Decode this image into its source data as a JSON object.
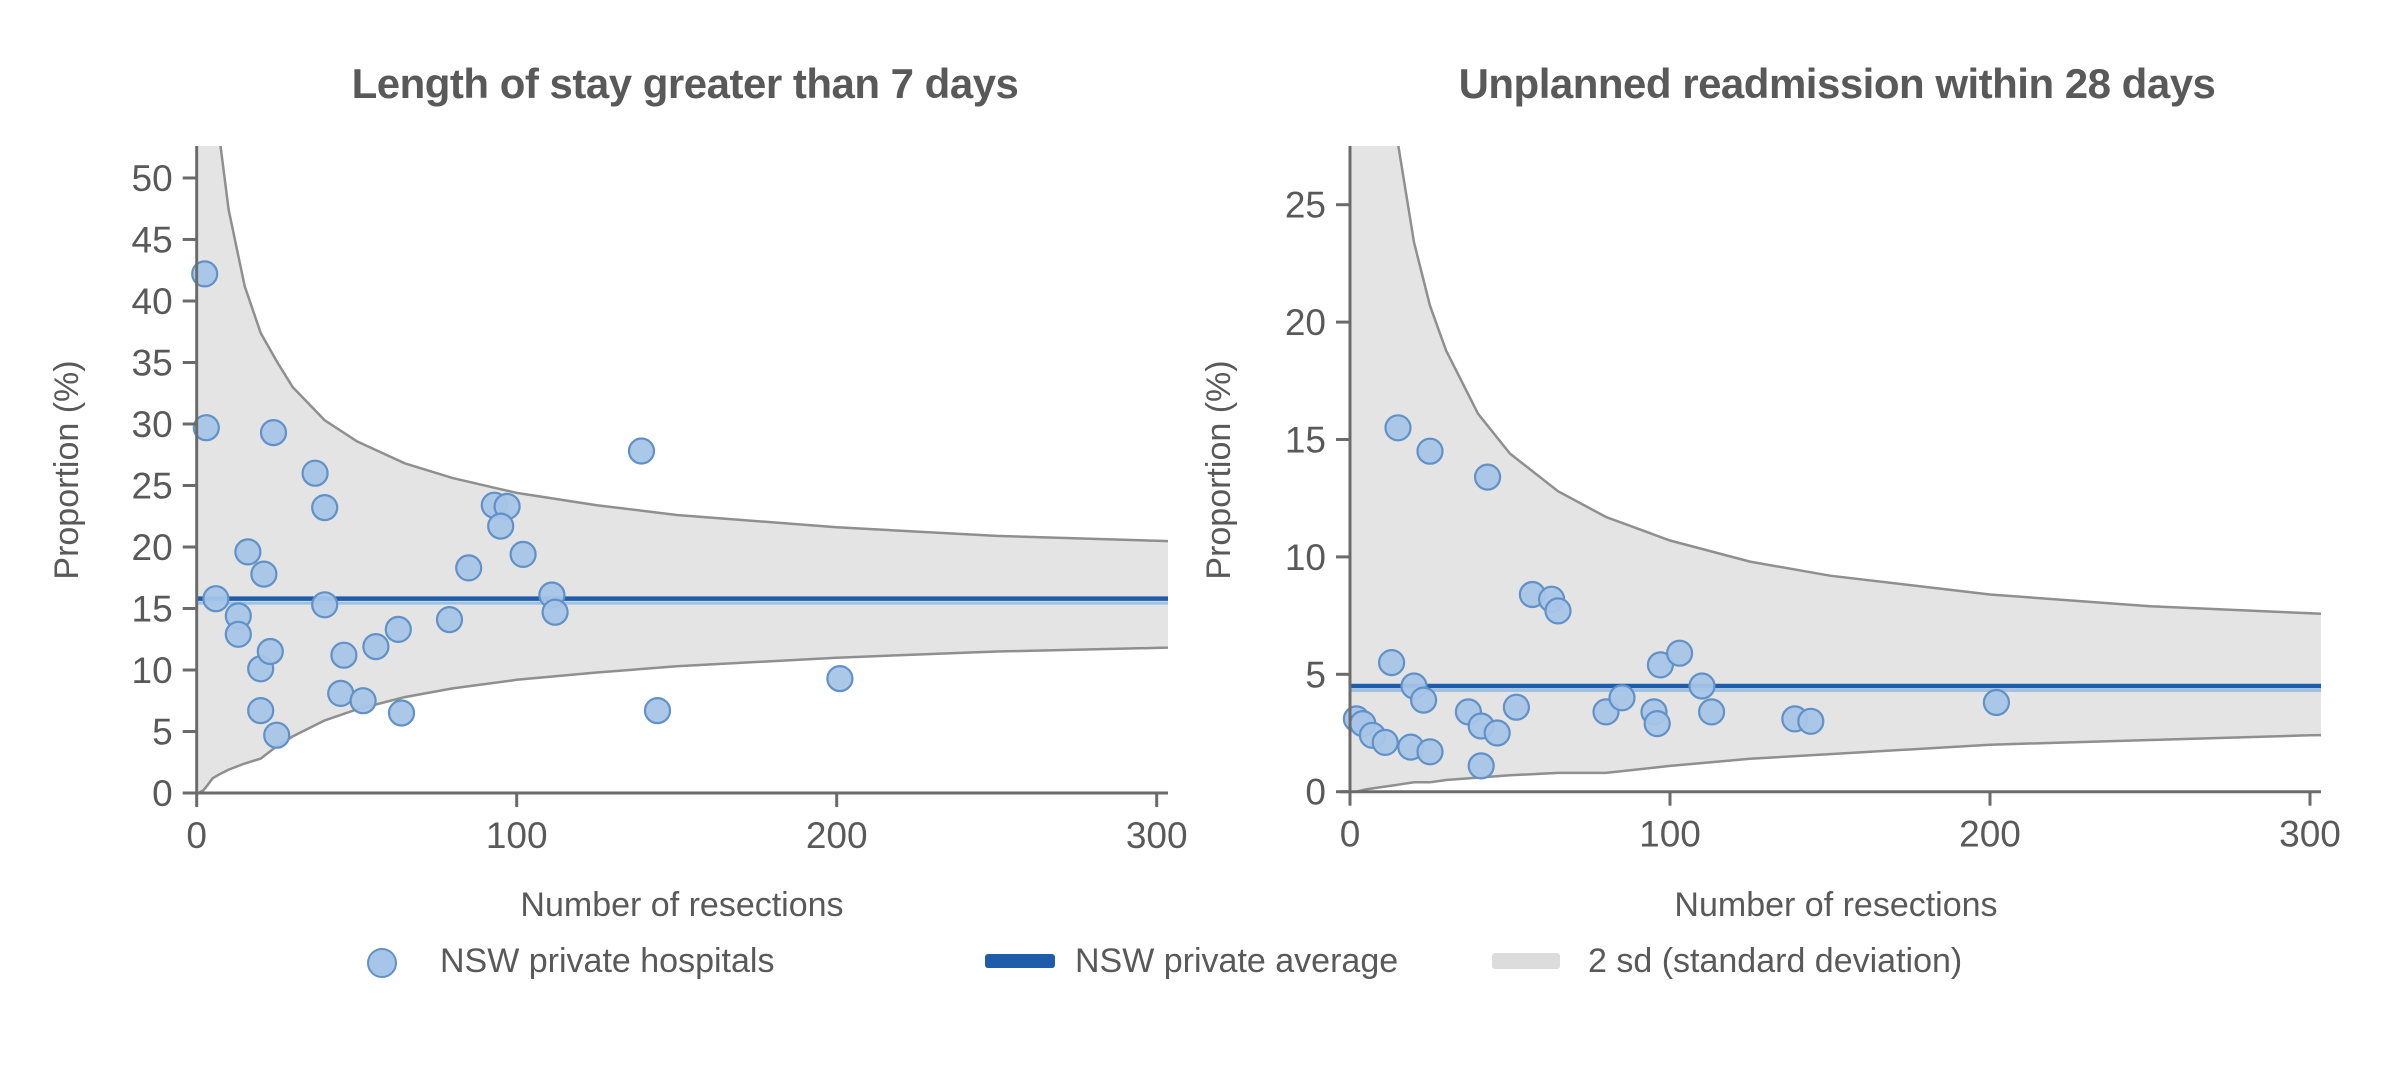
{
  "colors": {
    "point_fill": "#a6c5e8",
    "point_stroke": "#6191c6",
    "mean_line": "#1f5ca9",
    "mean_line_light": "#9cc2e5",
    "band_fill": "#e4e4e4",
    "band_stroke": "#8f8f8f",
    "band_legend_swatch": "#dcdcdc",
    "axis": "#6b6b6b",
    "text": "#595959"
  },
  "legend": {
    "items": [
      {
        "label": "NSW private hospitals",
        "type": "dot"
      },
      {
        "label": "NSW private average",
        "type": "line"
      },
      {
        "label": "2 sd (standard deviation)",
        "type": "band"
      }
    ]
  },
  "chart_data": [
    {
      "type": "scatter",
      "title": "Length of stay greater than 7 days",
      "xlabel": "Number of resections",
      "ylabel": "Proportion (%)",
      "x_ticks": [
        0,
        100,
        200,
        300
      ],
      "y_ticks": [
        0,
        5,
        10,
        15,
        20,
        25,
        30,
        35,
        40,
        45,
        50
      ],
      "xlim": [
        0,
        303.5
      ],
      "ylim": [
        0,
        52.6
      ],
      "legend_position": "bottom",
      "grid": false,
      "mean": 15.8,
      "points": [
        [
          2.5,
          42.2
        ],
        [
          3,
          29.7
        ],
        [
          6,
          15.8
        ],
        [
          13,
          14.4
        ],
        [
          13,
          12.9
        ],
        [
          16,
          19.6
        ],
        [
          21,
          17.8
        ],
        [
          20,
          10.1
        ],
        [
          20,
          6.7
        ],
        [
          23,
          11.5
        ],
        [
          24,
          29.3
        ],
        [
          25,
          4.7
        ],
        [
          37,
          26.0
        ],
        [
          40,
          23.2
        ],
        [
          40,
          15.3
        ],
        [
          45,
          8.1
        ],
        [
          46,
          11.2
        ],
        [
          52,
          7.5
        ],
        [
          56,
          11.9
        ],
        [
          63,
          13.3
        ],
        [
          64,
          6.5
        ],
        [
          79,
          14.1
        ],
        [
          85,
          18.3
        ],
        [
          93,
          23.4
        ],
        [
          97,
          23.3
        ],
        [
          95,
          21.7
        ],
        [
          102,
          19.4
        ],
        [
          111,
          16.1
        ],
        [
          112,
          14.7
        ],
        [
          139,
          27.8
        ],
        [
          144,
          6.7
        ],
        [
          201,
          9.3
        ]
      ],
      "funnel_2sd": {
        "n": [
          0.5,
          2,
          3,
          5,
          7,
          10,
          15,
          20,
          25,
          30,
          40,
          50,
          65,
          80,
          100,
          125,
          150,
          200,
          250,
          300,
          350
        ],
        "upper": [
          100,
          76.1,
          69.1,
          59.7,
          53.5,
          47.4,
          41.2,
          37.4,
          35.1,
          33.0,
          30.3,
          28.6,
          26.8,
          25.6,
          24.4,
          23.4,
          22.6,
          21.6,
          20.9,
          20.5,
          20.1
        ],
        "lower": [
          0,
          0.2,
          0.5,
          1.2,
          1.5,
          1.9,
          2.4,
          2.8,
          3.8,
          4.6,
          5.9,
          6.8,
          7.8,
          8.5,
          9.2,
          9.8,
          10.3,
          11.0,
          11.5,
          11.8,
          12.1
        ]
      }
    },
    {
      "type": "scatter",
      "title": "Unplanned readmission within 28 days",
      "xlabel": "Number of resections",
      "ylabel": "Proportion (%)",
      "x_ticks": [
        0,
        100,
        200,
        300
      ],
      "y_ticks": [
        0,
        5,
        10,
        15,
        20,
        25
      ],
      "xlim": [
        0,
        303.5
      ],
      "ylim": [
        0,
        27.5
      ],
      "legend_position": "bottom",
      "grid": false,
      "mean": 4.5,
      "points": [
        [
          2,
          3.1
        ],
        [
          4,
          2.9
        ],
        [
          7,
          2.4
        ],
        [
          11,
          2.1
        ],
        [
          13,
          5.5
        ],
        [
          15,
          15.5
        ],
        [
          19,
          1.9
        ],
        [
          20,
          4.5
        ],
        [
          23,
          3.9
        ],
        [
          25,
          1.7
        ],
        [
          25,
          14.5
        ],
        [
          37,
          3.4
        ],
        [
          41,
          2.8
        ],
        [
          41,
          1.1
        ],
        [
          43,
          13.4
        ],
        [
          46,
          2.5
        ],
        [
          52,
          3.6
        ],
        [
          57,
          8.4
        ],
        [
          63,
          8.2
        ],
        [
          65,
          7.7
        ],
        [
          80,
          3.4
        ],
        [
          85,
          4.0
        ],
        [
          95,
          3.4
        ],
        [
          96,
          2.9
        ],
        [
          97,
          5.4
        ],
        [
          103,
          5.9
        ],
        [
          110,
          4.5
        ],
        [
          113,
          3.4
        ],
        [
          139,
          3.1
        ],
        [
          144,
          3.0
        ],
        [
          202,
          3.8
        ]
      ],
      "funnel_2sd": {
        "n": [
          0.5,
          2,
          5,
          10,
          15,
          20,
          25,
          30,
          40,
          50,
          65,
          80,
          100,
          125,
          150,
          200,
          250,
          300,
          350
        ],
        "upper": [
          100,
          69.6,
          49.2,
          34.6,
          27.6,
          23.4,
          20.7,
          18.8,
          16.1,
          14.4,
          12.8,
          11.7,
          10.7,
          9.8,
          9.2,
          8.4,
          7.9,
          7.6,
          7.3
        ],
        "lower": [
          0,
          0,
          0.1,
          0.2,
          0.3,
          0.4,
          0.4,
          0.5,
          0.6,
          0.7,
          0.8,
          0.8,
          1.1,
          1.4,
          1.6,
          2.0,
          2.2,
          2.4,
          2.5
        ]
      }
    }
  ]
}
